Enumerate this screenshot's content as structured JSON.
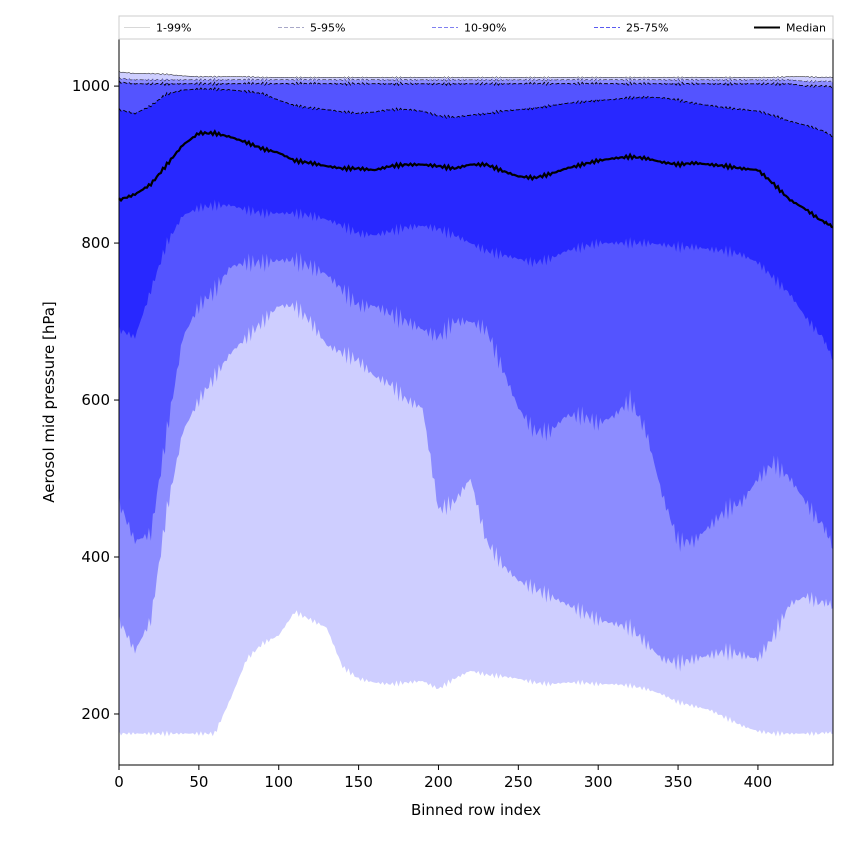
{
  "chart_data": {
    "type": "area",
    "xlabel": "Binned row index",
    "ylabel": "Aerosol mid pressure [hPa]",
    "xlim": [
      0,
      447
    ],
    "ylim": [
      135,
      1060
    ],
    "x_ticks": [
      0,
      50,
      100,
      150,
      200,
      250,
      300,
      350,
      400
    ],
    "y_ticks": [
      200,
      400,
      600,
      800,
      1000
    ],
    "grid": false,
    "legend_placement": "top, spanning the plot width",
    "colors": {
      "band_1_99": "#ceceff",
      "band_5_95": "#8c8cff",
      "band_10_90": "#5454ff",
      "band_25_75": "#2828ff",
      "median": "#000000"
    },
    "x": [
      0,
      10,
      20,
      30,
      40,
      50,
      60,
      70,
      80,
      90,
      100,
      110,
      120,
      130,
      140,
      150,
      160,
      170,
      180,
      190,
      200,
      210,
      220,
      230,
      240,
      250,
      260,
      270,
      280,
      290,
      300,
      310,
      320,
      330,
      340,
      350,
      360,
      370,
      380,
      390,
      400,
      410,
      420,
      430,
      440,
      447
    ],
    "series": [
      {
        "name": "1-99%",
        "lower": [
          175,
          175,
          175,
          175,
          175,
          175,
          175,
          220,
          270,
          290,
          300,
          330,
          320,
          310,
          260,
          245,
          240,
          238,
          240,
          242,
          232,
          245,
          255,
          250,
          248,
          245,
          240,
          238,
          240,
          240,
          238,
          238,
          236,
          232,
          225,
          215,
          210,
          205,
          195,
          185,
          178,
          175,
          175,
          175,
          175,
          175
        ],
        "upper": [
          1018,
          1016,
          1016,
          1015,
          1013,
          1012,
          1012,
          1012,
          1012,
          1011,
          1011,
          1011,
          1011,
          1011,
          1011,
          1011,
          1011,
          1011,
          1011,
          1011,
          1011,
          1011,
          1011,
          1011,
          1011,
          1011,
          1011,
          1011,
          1011,
          1011,
          1011,
          1011,
          1011,
          1011,
          1011,
          1011,
          1011,
          1011,
          1011,
          1011,
          1011,
          1011,
          1012,
          1012,
          1011,
          1011
        ]
      },
      {
        "name": "5-95%",
        "lower": [
          320,
          280,
          320,
          460,
          560,
          600,
          630,
          660,
          680,
          700,
          720,
          720,
          700,
          670,
          660,
          650,
          630,
          620,
          600,
          590,
          460,
          470,
          500,
          420,
          390,
          370,
          360,
          350,
          340,
          330,
          320,
          315,
          310,
          290,
          270,
          265,
          270,
          275,
          280,
          275,
          270,
          300,
          340,
          350,
          340,
          335
        ],
        "upper": [
          1010,
          1008,
          1008,
          1008,
          1008,
          1008,
          1008,
          1008,
          1008,
          1008,
          1008,
          1008,
          1008,
          1008,
          1008,
          1008,
          1008,
          1008,
          1008,
          1008,
          1008,
          1008,
          1008,
          1008,
          1008,
          1008,
          1008,
          1008,
          1008,
          1008,
          1008,
          1008,
          1008,
          1008,
          1008,
          1008,
          1008,
          1008,
          1008,
          1008,
          1008,
          1008,
          1008,
          1006,
          1006,
          1005
        ]
      },
      {
        "name": "10-90%",
        "lower": [
          470,
          420,
          430,
          560,
          680,
          720,
          740,
          770,
          775,
          775,
          778,
          778,
          770,
          760,
          740,
          720,
          720,
          710,
          700,
          690,
          680,
          700,
          700,
          690,
          640,
          590,
          560,
          560,
          580,
          580,
          570,
          580,
          600,
          560,
          480,
          420,
          420,
          440,
          460,
          470,
          500,
          520,
          500,
          470,
          440,
          410
        ],
        "upper": [
          1005,
          1003,
          1003,
          1003,
          1003,
          1003,
          1003,
          1003,
          1003,
          1003,
          1003,
          1003,
          1003,
          1003,
          1003,
          1003,
          1003,
          1003,
          1003,
          1003,
          1003,
          1003,
          1003,
          1003,
          1003,
          1003,
          1003,
          1003,
          1003,
          1003,
          1003,
          1003,
          1003,
          1003,
          1003,
          1003,
          1003,
          1003,
          1003,
          1003,
          1003,
          1003,
          1003,
          1000,
          1000,
          998
        ]
      },
      {
        "name": "25-75%",
        "lower": [
          690,
          680,
          740,
          800,
          835,
          845,
          848,
          848,
          842,
          838,
          838,
          838,
          835,
          830,
          822,
          812,
          810,
          815,
          820,
          822,
          818,
          810,
          800,
          790,
          785,
          780,
          775,
          780,
          790,
          795,
          800,
          800,
          800,
          800,
          798,
          795,
          795,
          792,
          790,
          785,
          775,
          755,
          735,
          705,
          680,
          650
        ],
        "upper": [
          970,
          965,
          975,
          990,
          995,
          996,
          996,
          995,
          993,
          990,
          982,
          975,
          972,
          970,
          967,
          965,
          967,
          970,
          970,
          968,
          962,
          960,
          963,
          965,
          968,
          970,
          972,
          975,
          978,
          980,
          982,
          983,
          985,
          986,
          985,
          982,
          978,
          975,
          972,
          970,
          968,
          962,
          955,
          950,
          943,
          935
        ]
      },
      {
        "name": "Median",
        "values": [
          855,
          862,
          875,
          900,
          925,
          940,
          940,
          935,
          928,
          920,
          915,
          905,
          902,
          898,
          895,
          895,
          893,
          898,
          900,
          900,
          898,
          895,
          900,
          900,
          892,
          885,
          883,
          888,
          895,
          900,
          905,
          908,
          910,
          908,
          903,
          900,
          902,
          900,
          898,
          895,
          893,
          875,
          855,
          843,
          828,
          820
        ]
      }
    ],
    "band_edge_lines": [
      "1-99%",
      "5-95%",
      "10-90%",
      "25-75%"
    ]
  }
}
